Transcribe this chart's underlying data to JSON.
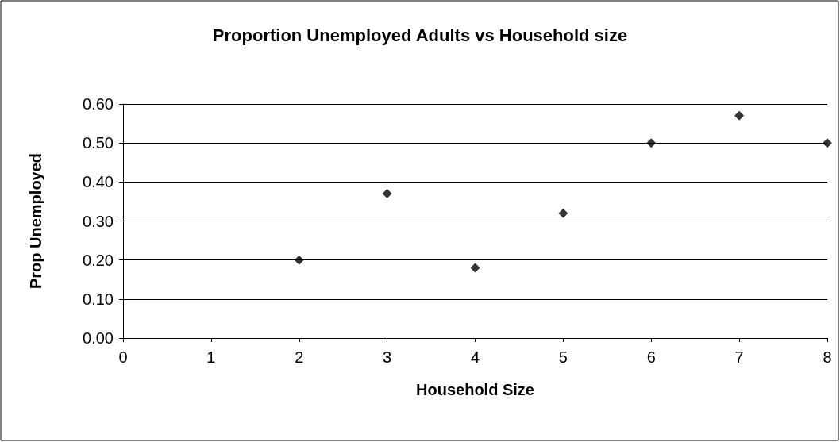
{
  "chart_data": {
    "type": "scatter",
    "title": "Proportion Unemployed Adults vs Household size",
    "xlabel": "Household Size",
    "ylabel": "Prop Unemployed",
    "x": [
      2,
      3,
      4,
      5,
      6,
      7,
      8
    ],
    "values": [
      0.2,
      0.37,
      0.18,
      0.32,
      0.5,
      0.57,
      0.5
    ],
    "color": "#000000",
    "marker": "diamond",
    "grid": "y",
    "xlim": [
      0,
      8
    ],
    "xticks": [
      0,
      1,
      2,
      3,
      4,
      5,
      6,
      7,
      8
    ],
    "ylim": [
      0,
      0.6
    ],
    "yticks": [
      {
        "value": 0,
        "label": "0.00"
      },
      {
        "value": 0.1,
        "label": "0.10"
      },
      {
        "value": 0.2,
        "label": "0.20"
      },
      {
        "value": 0.3,
        "label": "0.30"
      },
      {
        "value": 0.4,
        "label": "0.40"
      },
      {
        "value": 0.5,
        "label": "0.50"
      },
      {
        "value": 0.6,
        "label": "0.60"
      }
    ]
  }
}
